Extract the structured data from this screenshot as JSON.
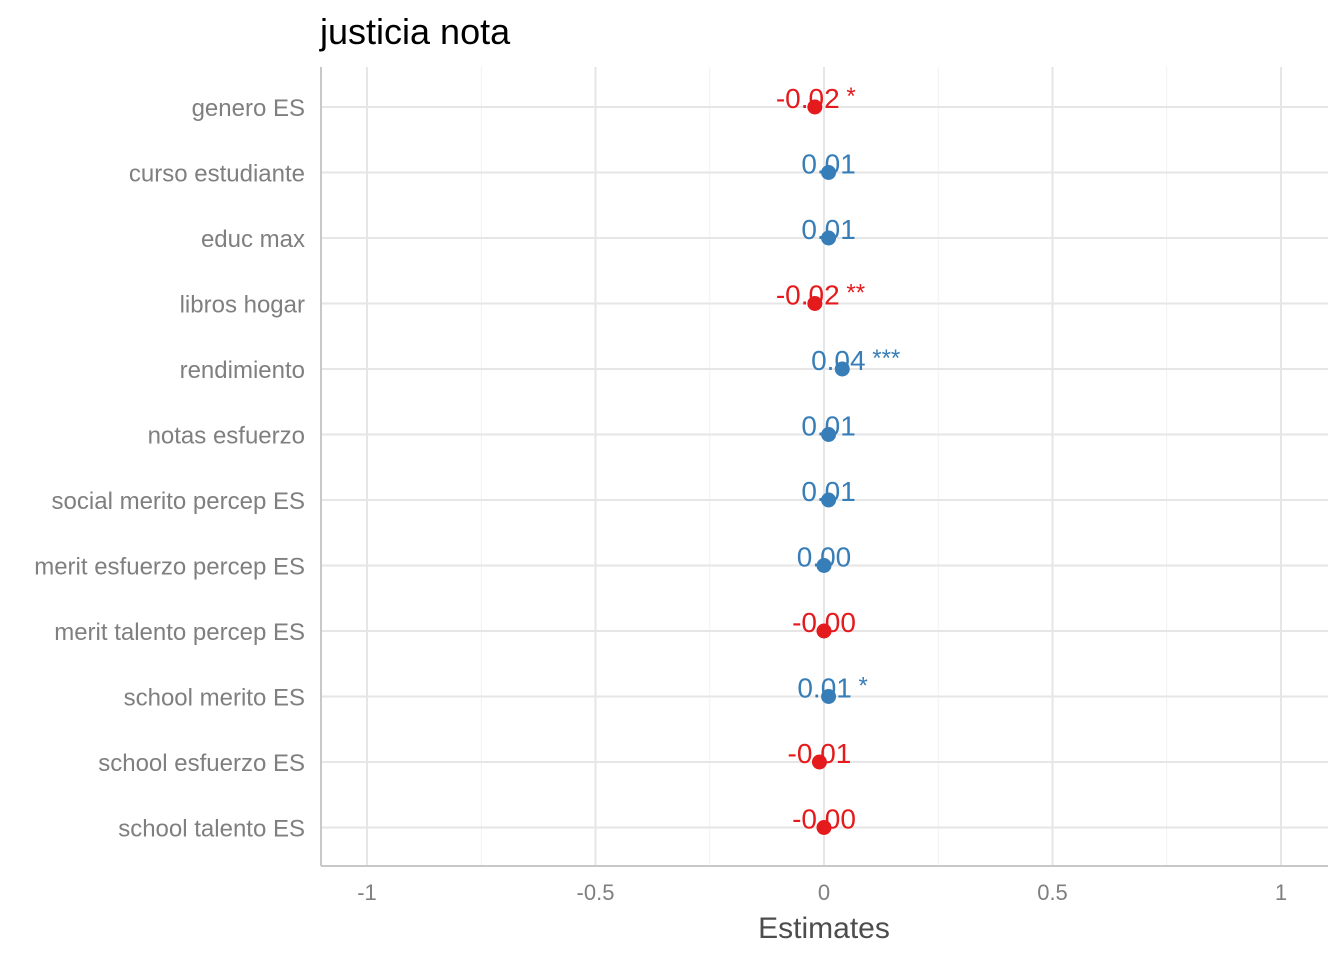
{
  "title": "justicia nota",
  "chart_data": {
    "type": "scatter",
    "title": "justicia nota",
    "xlabel": "Estimates",
    "ylabel": "",
    "xlim": [
      -1.1,
      1.1
    ],
    "x_ticks": [
      -1,
      -0.5,
      0,
      0.5,
      1
    ],
    "x_tick_labels": [
      "-1",
      "-0.5",
      "0",
      "0.5",
      "1"
    ],
    "grid": true,
    "colors": {
      "positive": "#377eb8",
      "negative": "#e41a1c"
    },
    "terms": [
      {
        "label": "genero ES",
        "estimate": -0.02,
        "value_label": "-0.02 *",
        "sign": "negative"
      },
      {
        "label": "curso estudiante",
        "estimate": 0.01,
        "value_label": "0.01",
        "sign": "positive"
      },
      {
        "label": "educ max",
        "estimate": 0.01,
        "value_label": "0.01",
        "sign": "positive"
      },
      {
        "label": "libros hogar",
        "estimate": -0.02,
        "value_label": "-0.02 **",
        "sign": "negative"
      },
      {
        "label": "rendimiento",
        "estimate": 0.04,
        "value_label": "0.04 ***",
        "sign": "positive"
      },
      {
        "label": "notas esfuerzo",
        "estimate": 0.01,
        "value_label": "0.01",
        "sign": "positive"
      },
      {
        "label": "social merito percep ES",
        "estimate": 0.01,
        "value_label": "0.01",
        "sign": "positive"
      },
      {
        "label": "merit esfuerzo percep ES",
        "estimate": 0.0,
        "value_label": "0.00",
        "sign": "positive"
      },
      {
        "label": "merit talento percep ES",
        "estimate": -0.0,
        "value_label": "-0.00",
        "sign": "negative"
      },
      {
        "label": "school merito ES",
        "estimate": 0.01,
        "value_label": "0.01 *",
        "sign": "positive"
      },
      {
        "label": "school esfuerzo ES",
        "estimate": -0.01,
        "value_label": "-0.01",
        "sign": "negative"
      },
      {
        "label": "school talento ES",
        "estimate": -0.0,
        "value_label": "-0.00",
        "sign": "negative"
      }
    ]
  }
}
